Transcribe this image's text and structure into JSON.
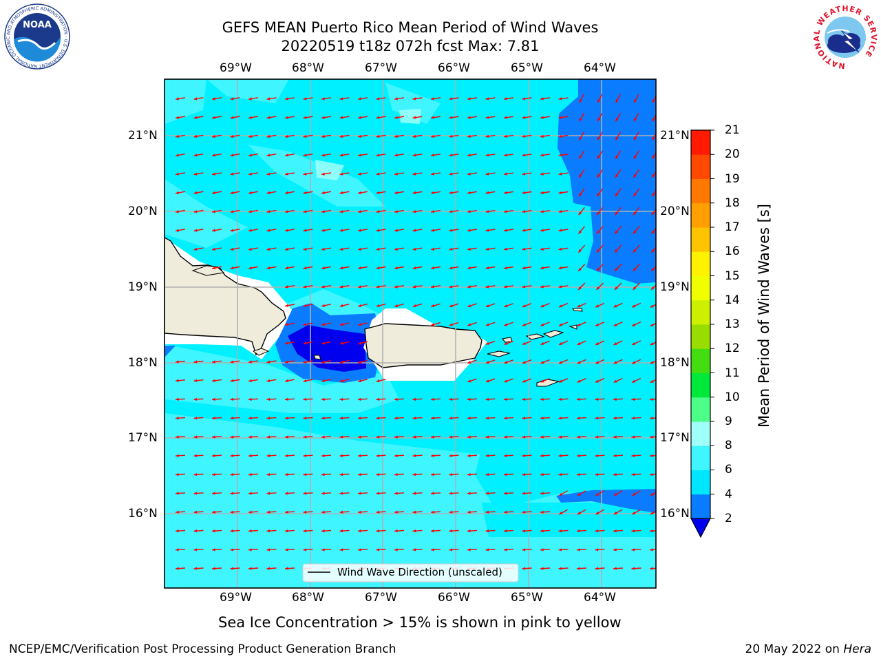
{
  "title": {
    "line1": "GEFS MEAN Puerto Rico Mean Period of Wind Waves",
    "line2": "20220519 t18z 072h fcst   Max: 7.81"
  },
  "axes": {
    "lon_labels": [
      "69°W",
      "68°W",
      "67°W",
      "66°W",
      "65°W",
      "64°W"
    ],
    "lat_labels": [
      "21°N",
      "20°N",
      "19°N",
      "18°N",
      "17°N",
      "16°N"
    ]
  },
  "legend": {
    "label": "Wind Wave Direction (unscaled)"
  },
  "colorbar": {
    "label": "Mean Period of Wind Waves [s]",
    "ticks": [
      "2",
      "4",
      "6",
      "8",
      "9",
      "10",
      "11",
      "12",
      "13",
      "14",
      "15",
      "16",
      "17",
      "18",
      "19",
      "20",
      "21"
    ],
    "colors": [
      "#0a7cff",
      "#00e6ff",
      "#3ff5ff",
      "#9ffff9",
      "#4dff88",
      "#00e83a",
      "#44dd11",
      "#99dd00",
      "#ccf000",
      "#f0ff00",
      "#fff200",
      "#ffc400",
      "#ffa000",
      "#ff7800",
      "#ff4800",
      "#ff1a00"
    ],
    "under_color": "#0000ee"
  },
  "caption": "Sea Ice Concentration > 15% is shown in pink to yellow",
  "footer": {
    "left": "NCEP/EMC/Verification Post Processing Product Generation Branch",
    "date": "20 May 2022 on ",
    "host": "Hera"
  },
  "logos": {
    "noaa": "NOAA",
    "noaa_ring": "NATIONAL OCEANIC AND ATMOSPHERIC ADMINISTRATION · U.S. DEPARTMENT OF COMMERCE",
    "nws_ring": "NATIONAL WEATHER SERVICE"
  },
  "map_data": {
    "lon_range": [
      -70.0,
      -63.3
    ],
    "lat_range": [
      15.0,
      21.75
    ],
    "field": "mean wind wave period (s)",
    "max_value": 7.81,
    "arrow_color": "#ff0000",
    "land_color": "#efecdc",
    "arrow_direction": "toward west / west-southwest"
  }
}
